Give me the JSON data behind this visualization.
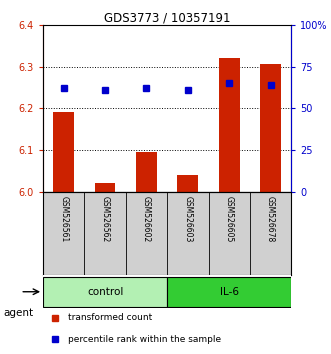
{
  "title": "GDS3773 / 10357191",
  "samples": [
    "GSM526561",
    "GSM526562",
    "GSM526602",
    "GSM526603",
    "GSM526605",
    "GSM526678"
  ],
  "groups": [
    "control",
    "control",
    "control",
    "IL-6",
    "IL-6",
    "IL-6"
  ],
  "red_values": [
    6.19,
    6.02,
    6.095,
    6.04,
    6.32,
    6.305
  ],
  "blue_values": [
    62,
    61,
    62,
    61,
    65,
    64
  ],
  "ylim_left": [
    6.0,
    6.4
  ],
  "ylim_right": [
    0,
    100
  ],
  "yticks_left": [
    6.0,
    6.1,
    6.2,
    6.3,
    6.4
  ],
  "yticks_right": [
    0,
    25,
    50,
    75,
    100
  ],
  "ytick_labels_right": [
    "0",
    "25",
    "50",
    "75",
    "100%"
  ],
  "control_color": "#b3f0b3",
  "il6_color": "#33cc33",
  "sample_bg_color": "#d0d0d0",
  "red_color": "#cc2200",
  "blue_color": "#0000cc",
  "legend_red": "transformed count",
  "legend_blue": "percentile rank within the sample",
  "agent_label": "agent",
  "grid_lines": [
    6.1,
    6.2,
    6.3
  ]
}
